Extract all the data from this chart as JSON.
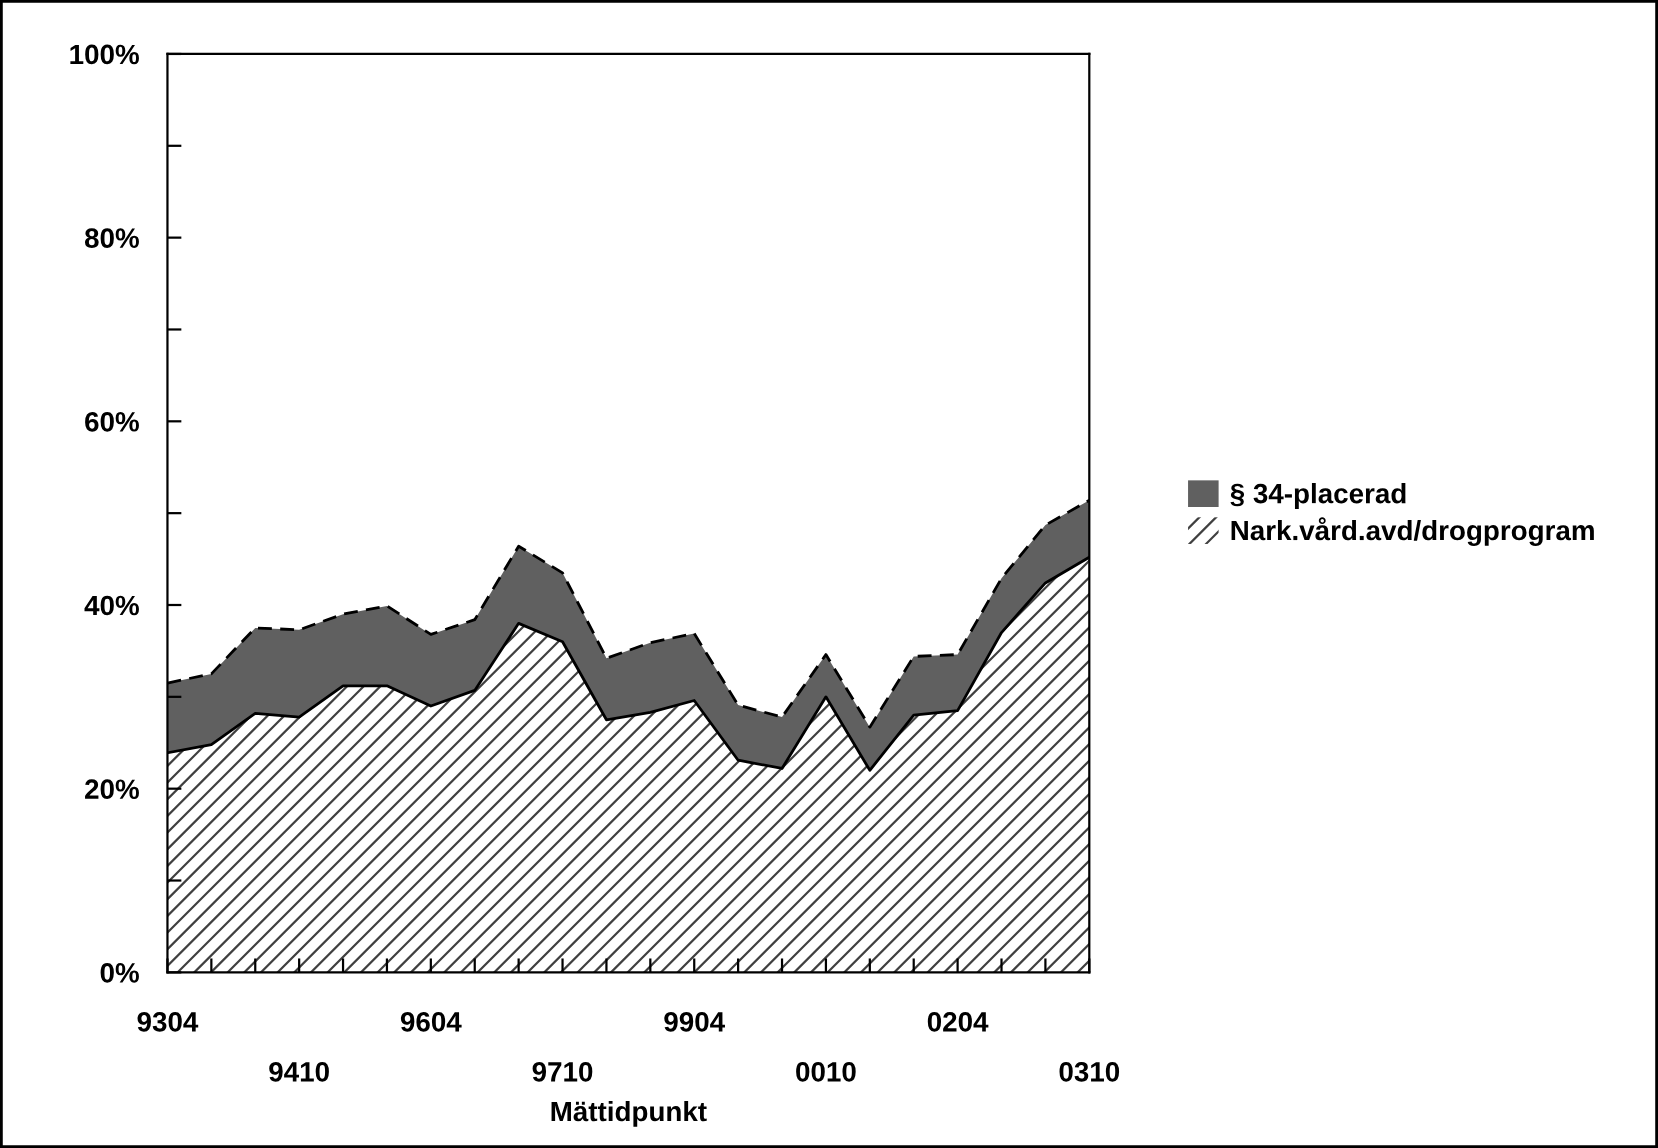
{
  "chart_data": {
    "type": "area",
    "stacked": true,
    "xlabel": "Mättidpunkt",
    "categories": [
      "9304",
      null,
      null,
      "9410",
      null,
      null,
      "9604",
      null,
      null,
      "9710",
      null,
      null,
      "9904",
      null,
      null,
      "0010",
      null,
      null,
      "0204",
      null,
      null,
      "0310"
    ],
    "series": [
      {
        "name": "Nark.vård.avd/drogprogram",
        "color": "#ffffff",
        "line_style": "solid",
        "values": [
          23.9,
          24.8,
          28.2,
          27.8,
          31.2,
          31.2,
          29.0,
          30.7,
          38.0,
          36.0,
          27.5,
          28.3,
          29.6,
          23.1,
          22.2,
          30.0,
          22.0,
          28.0,
          28.5,
          37.0,
          42.4,
          45.2
        ]
      },
      {
        "name": "§ 34-placerad",
        "color": "#606060",
        "line_style": "dashed",
        "values": [
          7.6,
          7.7,
          9.3,
          9.5,
          7.8,
          8.7,
          7.8,
          7.7,
          8.4,
          7.5,
          6.7,
          7.6,
          7.3,
          6.0,
          5.6,
          4.6,
          4.7,
          6.4,
          6.1,
          5.9,
          6.3,
          6.2
        ]
      }
    ],
    "ylim": [
      0,
      100
    ],
    "yticks": [
      {
        "value": 0,
        "label": "0%"
      },
      {
        "value": 10,
        "label": null
      },
      {
        "value": 20,
        "label": "20%"
      },
      {
        "value": 30,
        "label": null
      },
      {
        "value": 40,
        "label": "40%"
      },
      {
        "value": 50,
        "label": null
      },
      {
        "value": 60,
        "label": "60%"
      },
      {
        "value": 70,
        "label": null
      },
      {
        "value": 80,
        "label": "80%"
      },
      {
        "value": 90,
        "label": null
      },
      {
        "value": 100,
        "label": "100%"
      }
    ],
    "grid": false,
    "legend": "right"
  }
}
